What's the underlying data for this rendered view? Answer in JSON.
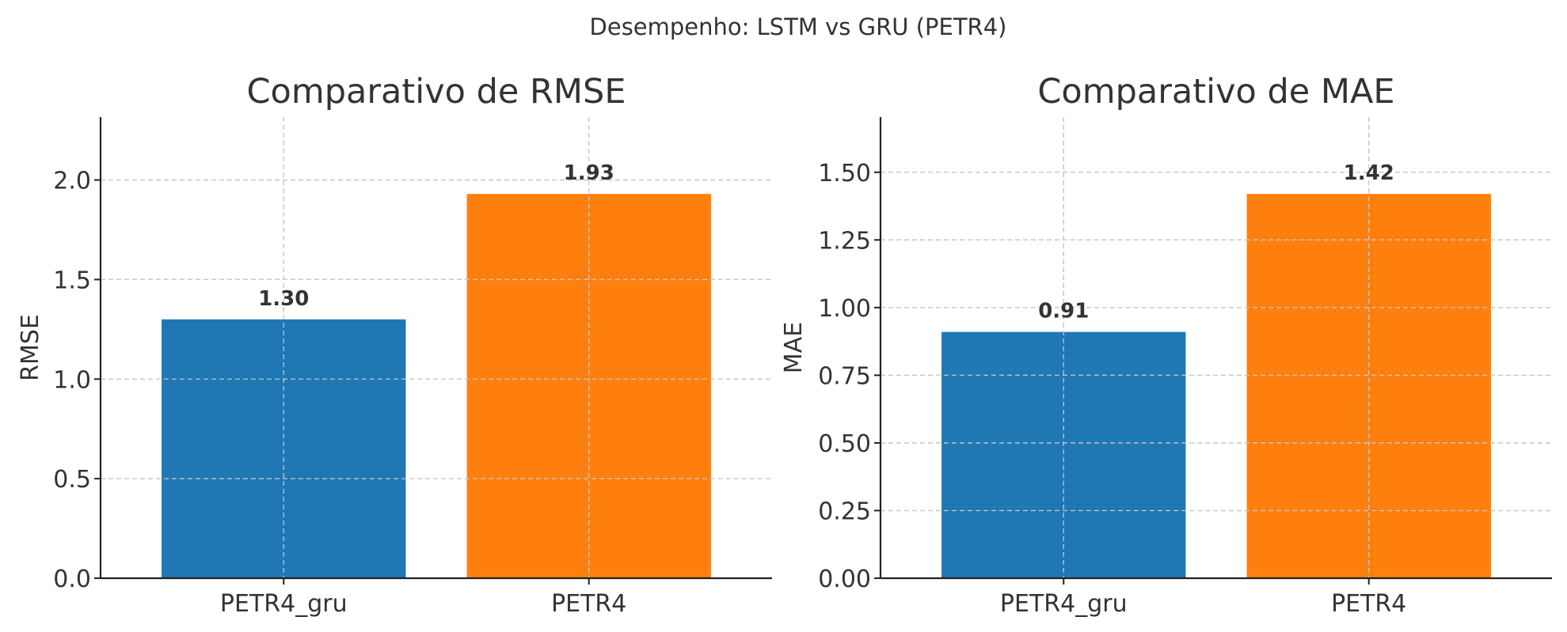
{
  "figure": {
    "suptitle": "Desempenho: LSTM vs GRU (PETR4)"
  },
  "chart_data": [
    {
      "type": "bar",
      "title": "Comparativo de RMSE",
      "xlabel": "",
      "ylabel": "RMSE",
      "categories": [
        "PETR4_gru",
        "PETR4"
      ],
      "values": [
        1.3,
        1.93
      ],
      "value_labels": [
        "1.30",
        "1.93"
      ],
      "colors": [
        "#1f77b4",
        "#ff7f0e"
      ],
      "ylim": [
        0,
        2.316
      ],
      "yticks": [
        0.0,
        0.5,
        1.0,
        1.5,
        2.0
      ],
      "ytick_labels": [
        "0.0",
        "0.5",
        "1.0",
        "1.5",
        "2.0"
      ],
      "grid": true
    },
    {
      "type": "bar",
      "title": "Comparativo de MAE",
      "xlabel": "",
      "ylabel": "MAE",
      "categories": [
        "PETR4_gru",
        "PETR4"
      ],
      "values": [
        0.91,
        1.42
      ],
      "value_labels": [
        "0.91",
        "1.42"
      ],
      "colors": [
        "#1f77b4",
        "#ff7f0e"
      ],
      "ylim": [
        0,
        1.704
      ],
      "yticks": [
        0.0,
        0.25,
        0.5,
        0.75,
        1.0,
        1.25,
        1.5
      ],
      "ytick_labels": [
        "0.00",
        "0.25",
        "0.50",
        "0.75",
        "1.00",
        "1.25",
        "1.50"
      ],
      "grid": true
    }
  ]
}
